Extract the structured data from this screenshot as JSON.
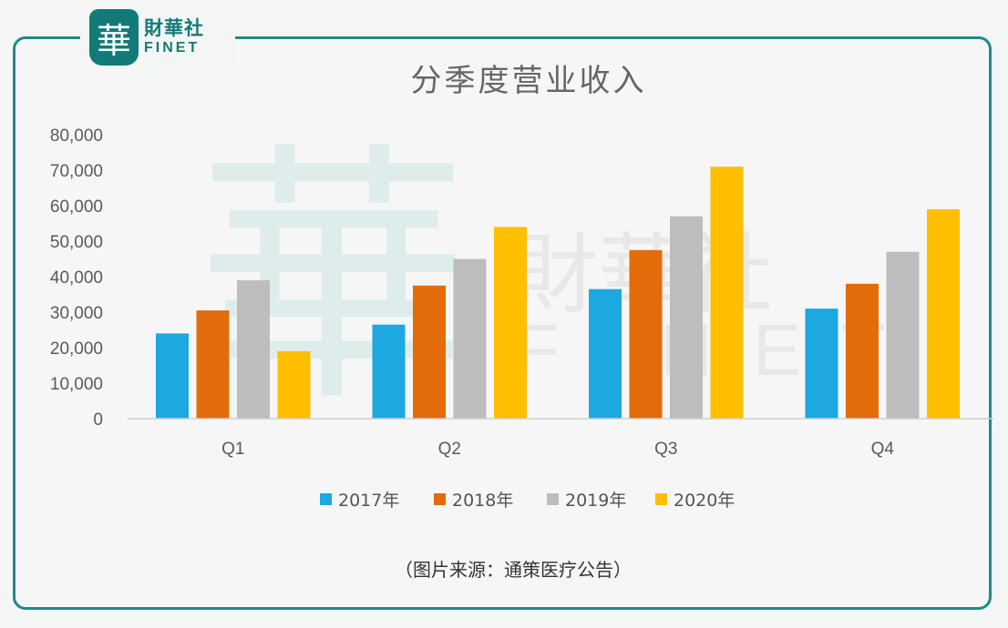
{
  "logo": {
    "glyph": "華",
    "name_cn": "財華社",
    "name_en": "FINET"
  },
  "watermark": {
    "cn": "財華社",
    "en": "FINET",
    "glyph": "華"
  },
  "source_note": "（图片来源：通策医疗公告）",
  "colors": {
    "frame": "#1f8a88",
    "s2017": "#1ea8e0",
    "s2018": "#e36c0a",
    "s2019": "#bdbdbd",
    "s2020": "#ffbf00"
  },
  "chart_data": {
    "type": "bar",
    "title": "分季度营业收入",
    "categories": [
      "Q1",
      "Q2",
      "Q3",
      "Q4"
    ],
    "series": [
      {
        "name": "2017年",
        "values": [
          24000,
          26500,
          36500,
          31000
        ]
      },
      {
        "name": "2018年",
        "values": [
          30500,
          37500,
          47500,
          38000
        ]
      },
      {
        "name": "2019年",
        "values": [
          39000,
          45000,
          57000,
          47000
        ]
      },
      {
        "name": "2020年",
        "values": [
          19000,
          54000,
          71000,
          59000
        ]
      }
    ],
    "yticks": [
      "0",
      "10,000",
      "20,000",
      "30,000",
      "40,000",
      "50,000",
      "60,000",
      "70,000",
      "80,000"
    ],
    "ylim": [
      0,
      80000
    ],
    "grid": false,
    "legend_position": "bottom"
  }
}
